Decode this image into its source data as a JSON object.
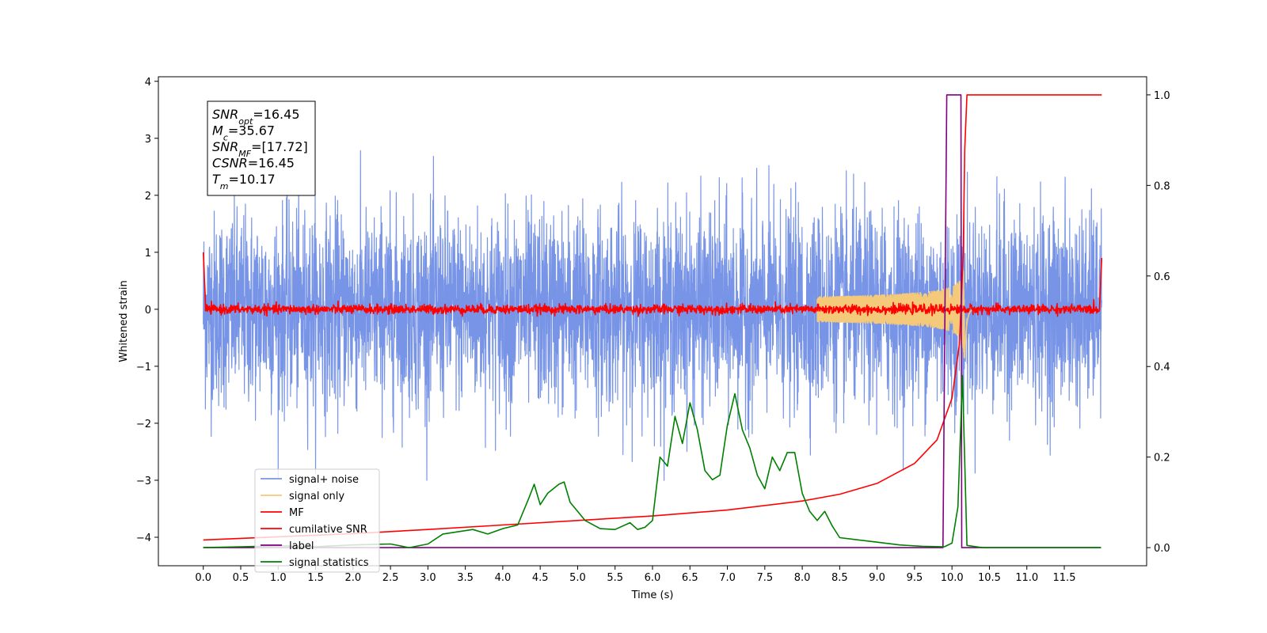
{
  "chart_data": {
    "type": "line",
    "title": "",
    "xlabel": "Time (s)",
    "ylabel": "Whitened strain",
    "xlim": [
      -0.6,
      12.6
    ],
    "ylim": [
      -4.5,
      4.08
    ],
    "y2lim": [
      -0.04,
      1.04
    ],
    "x_ticks": [
      "0.0",
      "0.5",
      "1.0",
      "1.5",
      "2.0",
      "2.5",
      "3.0",
      "3.5",
      "4.0",
      "4.5",
      "5.0",
      "5.5",
      "6.0",
      "6.5",
      "7.0",
      "7.5",
      "8.0",
      "8.5",
      "9.0",
      "9.5",
      "10.0",
      "10.5",
      "11.0",
      "11.5"
    ],
    "y_ticks": [
      "4",
      "3",
      "2",
      "1",
      "0",
      "−1",
      "−2",
      "−3",
      "−4"
    ],
    "y2_ticks": [
      "1.0",
      "0.8",
      "0.6",
      "0.4",
      "0.2",
      "0.0"
    ],
    "grid": false,
    "legend_position": "lower-left",
    "annotation": {
      "snr_opt": {
        "base": "SNR",
        "sub": "opt",
        "value": "=16.45"
      },
      "mc": {
        "base": "M",
        "sub": "c",
        "value": "=35.67"
      },
      "snr_mf": {
        "base": "SNR",
        "sub": "MF",
        "value": "=[17.72]"
      },
      "csnr": {
        "base": "CSNR",
        "value": "=16.45"
      },
      "tm": {
        "base": "T",
        "sub": "m",
        "value": "=10.17"
      }
    },
    "series": [
      {
        "name": "signal+ noise",
        "color": "#7894e6",
        "axis": "left",
        "style": "noise",
        "x_range": [
          0,
          12
        ],
        "amplitude_std": 0.85
      },
      {
        "name": "signal only",
        "color": "#f5c97a",
        "axis": "left",
        "style": "chirp",
        "merger_time": 10.17,
        "peak_amplitude": 1.1
      },
      {
        "name": "MF",
        "color": "#ff0000",
        "axis": "left",
        "style": "mf",
        "x_range": [
          0,
          12
        ],
        "amplitude_std": 0.04
      },
      {
        "name": "cumilative SNR",
        "color": "#ff0000",
        "axis": "right",
        "x": [
          0.0,
          1.0,
          2.0,
          3.0,
          4.0,
          5.0,
          6.0,
          7.0,
          8.0,
          8.5,
          9.0,
          9.5,
          9.8,
          10.0,
          10.1,
          10.15,
          10.17,
          10.2,
          12.0
        ],
        "y": [
          0.017,
          0.024,
          0.031,
          0.04,
          0.05,
          0.06,
          0.07,
          0.083,
          0.103,
          0.118,
          0.142,
          0.186,
          0.238,
          0.33,
          0.45,
          0.65,
          0.88,
          1.0,
          1.0
        ]
      },
      {
        "name": "label",
        "color": "#800080",
        "axis": "right",
        "x": [
          0.0,
          9.88,
          9.93,
          10.12,
          10.13,
          11.99
        ],
        "y": [
          0.0,
          0.0,
          1.0,
          1.0,
          0.0,
          0.0
        ]
      },
      {
        "name": "signal statistics",
        "color": "#008000",
        "axis": "right",
        "x": [
          0.0,
          0.5,
          1.0,
          1.5,
          2.0,
          2.5,
          2.75,
          3.0,
          3.2,
          3.4,
          3.6,
          3.8,
          4.0,
          4.2,
          4.35,
          4.42,
          4.5,
          4.6,
          4.75,
          4.82,
          4.9,
          5.1,
          5.3,
          5.5,
          5.7,
          5.8,
          5.9,
          6.0,
          6.1,
          6.2,
          6.3,
          6.4,
          6.5,
          6.6,
          6.7,
          6.8,
          6.9,
          7.0,
          7.1,
          7.2,
          7.3,
          7.4,
          7.5,
          7.6,
          7.7,
          7.8,
          7.9,
          8.0,
          8.1,
          8.2,
          8.3,
          8.4,
          8.5,
          8.7,
          9.0,
          9.3,
          9.6,
          9.9,
          10.0,
          10.08,
          10.14,
          10.2,
          10.4,
          11.0,
          11.99
        ],
        "y": [
          0.0,
          0.002,
          0.004,
          0.002,
          0.006,
          0.008,
          0.0,
          0.008,
          0.03,
          0.035,
          0.04,
          0.03,
          0.042,
          0.05,
          0.11,
          0.14,
          0.095,
          0.12,
          0.14,
          0.145,
          0.1,
          0.06,
          0.042,
          0.04,
          0.055,
          0.04,
          0.045,
          0.06,
          0.2,
          0.18,
          0.29,
          0.23,
          0.32,
          0.26,
          0.17,
          0.15,
          0.16,
          0.27,
          0.34,
          0.26,
          0.22,
          0.16,
          0.13,
          0.2,
          0.17,
          0.21,
          0.21,
          0.12,
          0.08,
          0.06,
          0.08,
          0.048,
          0.022,
          0.018,
          0.012,
          0.006,
          0.003,
          0.002,
          0.01,
          0.09,
          0.38,
          0.005,
          0.0,
          0.0,
          0.0
        ]
      }
    ]
  }
}
